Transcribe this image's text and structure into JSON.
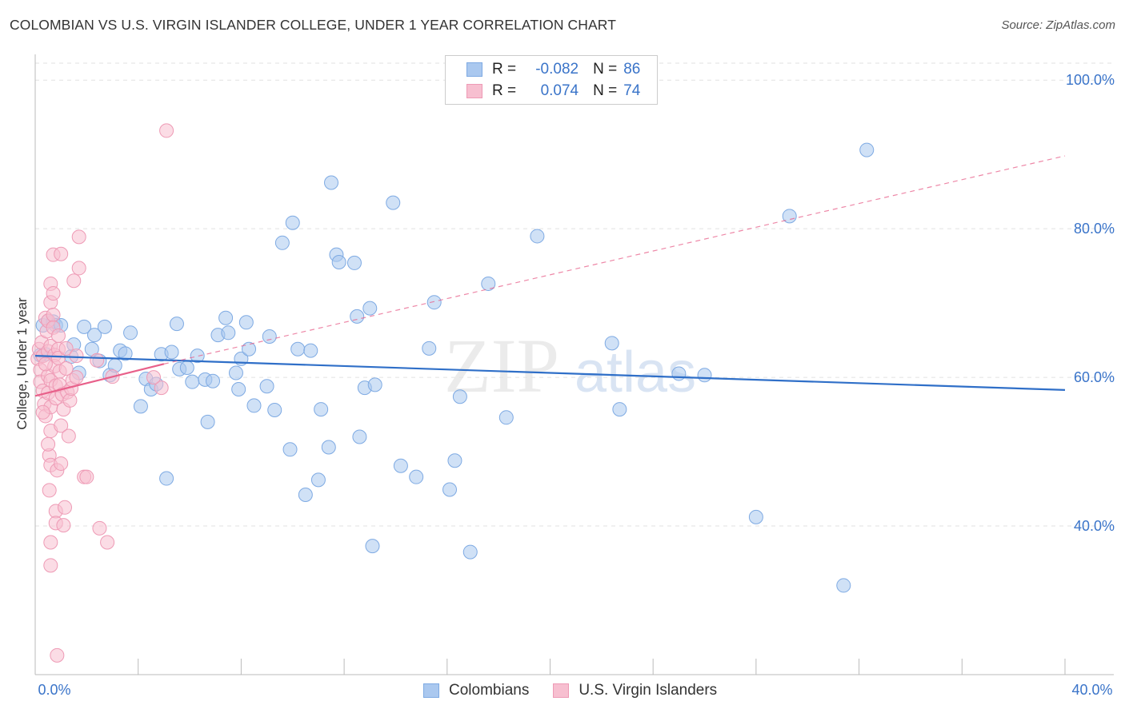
{
  "header": {
    "title": "COLOMBIAN VS U.S. VIRGIN ISLANDER COLLEGE, UNDER 1 YEAR CORRELATION CHART",
    "source": "Source: ZipAtlas.com"
  },
  "legend_box": {
    "rows": [
      {
        "r_label": "R =",
        "r_value": "-0.082",
        "n_label": "N =",
        "n_value": "86"
      },
      {
        "r_label": "R =",
        "r_value": "0.074",
        "n_label": "N =",
        "n_value": "74"
      }
    ]
  },
  "bottom_legend": {
    "items": [
      {
        "label": "Colombians"
      },
      {
        "label": "U.S. Virgin Islanders"
      }
    ]
  },
  "watermark": {
    "zip": "ZIP",
    "atlas": "atlas"
  },
  "colors": {
    "blue_fill": "#aac8ef",
    "blue_stroke": "#7eaae3",
    "blue_line": "#2f6fc8",
    "pink_fill": "#f7bfd0",
    "pink_stroke": "#ee9ab5",
    "pink_line": "#e8608a",
    "axis_text": "#3a74c9",
    "grid": "#e2e2e2"
  },
  "chart_data": {
    "type": "scatter",
    "title": "COLOMBIAN VS U.S. VIRGIN ISLANDER COLLEGE, UNDER 1 YEAR CORRELATION CHART",
    "xlabel": "",
    "ylabel": "College, Under 1 year",
    "xlim": [
      0,
      40
    ],
    "ylim": [
      20,
      104
    ],
    "x_tick_labels": [
      {
        "value": 0,
        "label": "0.0%"
      },
      {
        "value": 40,
        "label": "40.0%"
      }
    ],
    "y_tick_labels": [
      {
        "value": 40,
        "label": "40.0%"
      },
      {
        "value": 60,
        "label": "60.0%"
      },
      {
        "value": 80,
        "label": "80.0%"
      },
      {
        "value": 100,
        "label": "100.0%"
      }
    ],
    "series": [
      {
        "name": "Colombians",
        "color": "blue",
        "r": -0.082,
        "n": 86,
        "trend": {
          "x0": 0.0,
          "y0": 62.9,
          "x1": 40.0,
          "y1": 58.3
        },
        "points": [
          [
            0.3,
            67.0
          ],
          [
            0.5,
            67.6
          ],
          [
            0.7,
            67.5
          ],
          [
            0.8,
            67.0
          ],
          [
            0.4,
            63.1
          ],
          [
            1.0,
            67.0
          ],
          [
            1.4,
            62.8
          ],
          [
            1.5,
            64.4
          ],
          [
            1.7,
            60.6
          ],
          [
            1.9,
            66.8
          ],
          [
            2.2,
            63.8
          ],
          [
            2.3,
            65.7
          ],
          [
            2.5,
            62.2
          ],
          [
            2.7,
            66.8
          ],
          [
            2.9,
            60.3
          ],
          [
            3.1,
            61.6
          ],
          [
            3.3,
            63.6
          ],
          [
            3.5,
            63.2
          ],
          [
            3.7,
            66.0
          ],
          [
            4.1,
            56.1
          ],
          [
            4.3,
            59.8
          ],
          [
            4.5,
            58.4
          ],
          [
            4.7,
            59.1
          ],
          [
            4.9,
            63.1
          ],
          [
            5.1,
            46.4
          ],
          [
            5.3,
            63.4
          ],
          [
            5.5,
            67.2
          ],
          [
            5.6,
            61.1
          ],
          [
            5.9,
            61.3
          ],
          [
            6.1,
            59.4
          ],
          [
            6.3,
            62.9
          ],
          [
            6.6,
            59.7
          ],
          [
            6.7,
            54.0
          ],
          [
            6.9,
            59.5
          ],
          [
            7.1,
            65.7
          ],
          [
            7.4,
            68.0
          ],
          [
            7.5,
            66.0
          ],
          [
            7.8,
            60.6
          ],
          [
            7.9,
            58.4
          ],
          [
            8.0,
            62.5
          ],
          [
            8.2,
            67.4
          ],
          [
            8.3,
            63.8
          ],
          [
            8.5,
            56.2
          ],
          [
            9.0,
            58.8
          ],
          [
            9.1,
            65.5
          ],
          [
            9.3,
            55.6
          ],
          [
            9.6,
            78.1
          ],
          [
            9.9,
            50.3
          ],
          [
            10.0,
            80.8
          ],
          [
            10.2,
            63.8
          ],
          [
            10.5,
            44.2
          ],
          [
            10.7,
            63.6
          ],
          [
            11.0,
            46.2
          ],
          [
            11.1,
            55.7
          ],
          [
            11.4,
            50.6
          ],
          [
            11.5,
            86.2
          ],
          [
            11.7,
            76.5
          ],
          [
            11.8,
            75.5
          ],
          [
            12.6,
            52.0
          ],
          [
            12.4,
            75.4
          ],
          [
            12.5,
            68.2
          ],
          [
            12.8,
            58.6
          ],
          [
            13.0,
            69.3
          ],
          [
            13.1,
            37.3
          ],
          [
            13.2,
            59.0
          ],
          [
            13.9,
            83.5
          ],
          [
            14.2,
            48.1
          ],
          [
            14.8,
            46.6
          ],
          [
            15.3,
            63.9
          ],
          [
            15.5,
            70.1
          ],
          [
            16.1,
            44.9
          ],
          [
            16.3,
            48.8
          ],
          [
            16.5,
            57.4
          ],
          [
            16.9,
            36.5
          ],
          [
            17.6,
            72.6
          ],
          [
            18.3,
            54.6
          ],
          [
            19.5,
            79.0
          ],
          [
            22.4,
            64.6
          ],
          [
            22.7,
            55.7
          ],
          [
            25.0,
            60.5
          ],
          [
            26.0,
            60.3
          ],
          [
            28.0,
            41.2
          ],
          [
            29.3,
            81.7
          ],
          [
            31.4,
            32.0
          ],
          [
            32.3,
            90.6
          ],
          [
            0.2,
            63.0
          ]
        ]
      },
      {
        "name": "U.S. Virgin Islanders",
        "color": "pink",
        "r": 0.074,
        "n": 74,
        "trend": {
          "x0": 0.0,
          "y0": 57.5,
          "x1": 5.0,
          "y1": 61.8
        },
        "extension": {
          "x0": 5.0,
          "y0": 61.8,
          "x1": 40.0,
          "y1": 89.8
        },
        "points": [
          [
            0.1,
            62.5
          ],
          [
            0.15,
            63.8
          ],
          [
            0.2,
            61.0
          ],
          [
            0.2,
            59.4
          ],
          [
            0.25,
            64.7
          ],
          [
            0.3,
            62.9
          ],
          [
            0.3,
            58.2
          ],
          [
            0.35,
            56.4
          ],
          [
            0.4,
            68.0
          ],
          [
            0.4,
            54.8
          ],
          [
            0.45,
            66.2
          ],
          [
            0.5,
            67.6
          ],
          [
            0.5,
            63.5
          ],
          [
            0.5,
            60.2
          ],
          [
            0.5,
            57.9
          ],
          [
            0.55,
            49.5
          ],
          [
            0.55,
            44.8
          ],
          [
            0.6,
            72.6
          ],
          [
            0.6,
            70.1
          ],
          [
            0.6,
            64.2
          ],
          [
            0.6,
            59.6
          ],
          [
            0.6,
            56.0
          ],
          [
            0.6,
            52.8
          ],
          [
            0.6,
            48.2
          ],
          [
            0.6,
            37.8
          ],
          [
            0.6,
            34.7
          ],
          [
            0.7,
            76.5
          ],
          [
            0.7,
            71.3
          ],
          [
            0.7,
            68.4
          ],
          [
            0.7,
            66.7
          ],
          [
            0.75,
            63.0
          ],
          [
            0.75,
            61.5
          ],
          [
            0.8,
            58.9
          ],
          [
            0.8,
            57.2
          ],
          [
            0.8,
            42.0
          ],
          [
            0.8,
            40.4
          ],
          [
            0.85,
            47.5
          ],
          [
            0.85,
            22.6
          ],
          [
            0.9,
            65.6
          ],
          [
            0.9,
            63.8
          ],
          [
            0.9,
            62.6
          ],
          [
            0.95,
            60.8
          ],
          [
            0.95,
            59.0
          ],
          [
            1.0,
            76.6
          ],
          [
            1.0,
            53.5
          ],
          [
            1.0,
            48.4
          ],
          [
            1.05,
            57.7
          ],
          [
            1.1,
            55.7
          ],
          [
            1.1,
            40.1
          ],
          [
            1.15,
            42.5
          ],
          [
            1.2,
            63.9
          ],
          [
            1.2,
            61.2
          ],
          [
            1.25,
            58.0
          ],
          [
            1.3,
            52.1
          ],
          [
            1.35,
            56.9
          ],
          [
            1.4,
            58.5
          ],
          [
            1.45,
            59.6
          ],
          [
            1.5,
            73.0
          ],
          [
            1.6,
            62.9
          ],
          [
            1.6,
            60.0
          ],
          [
            1.7,
            78.9
          ],
          [
            1.7,
            74.7
          ],
          [
            1.9,
            46.6
          ],
          [
            2.0,
            46.6
          ],
          [
            2.4,
            62.3
          ],
          [
            2.5,
            39.7
          ],
          [
            2.8,
            37.8
          ],
          [
            3.0,
            60.1
          ],
          [
            5.1,
            93.2
          ],
          [
            4.9,
            58.6
          ],
          [
            4.6,
            60.0
          ],
          [
            0.3,
            55.3
          ],
          [
            0.4,
            61.8
          ],
          [
            0.5,
            51.0
          ]
        ]
      }
    ]
  }
}
